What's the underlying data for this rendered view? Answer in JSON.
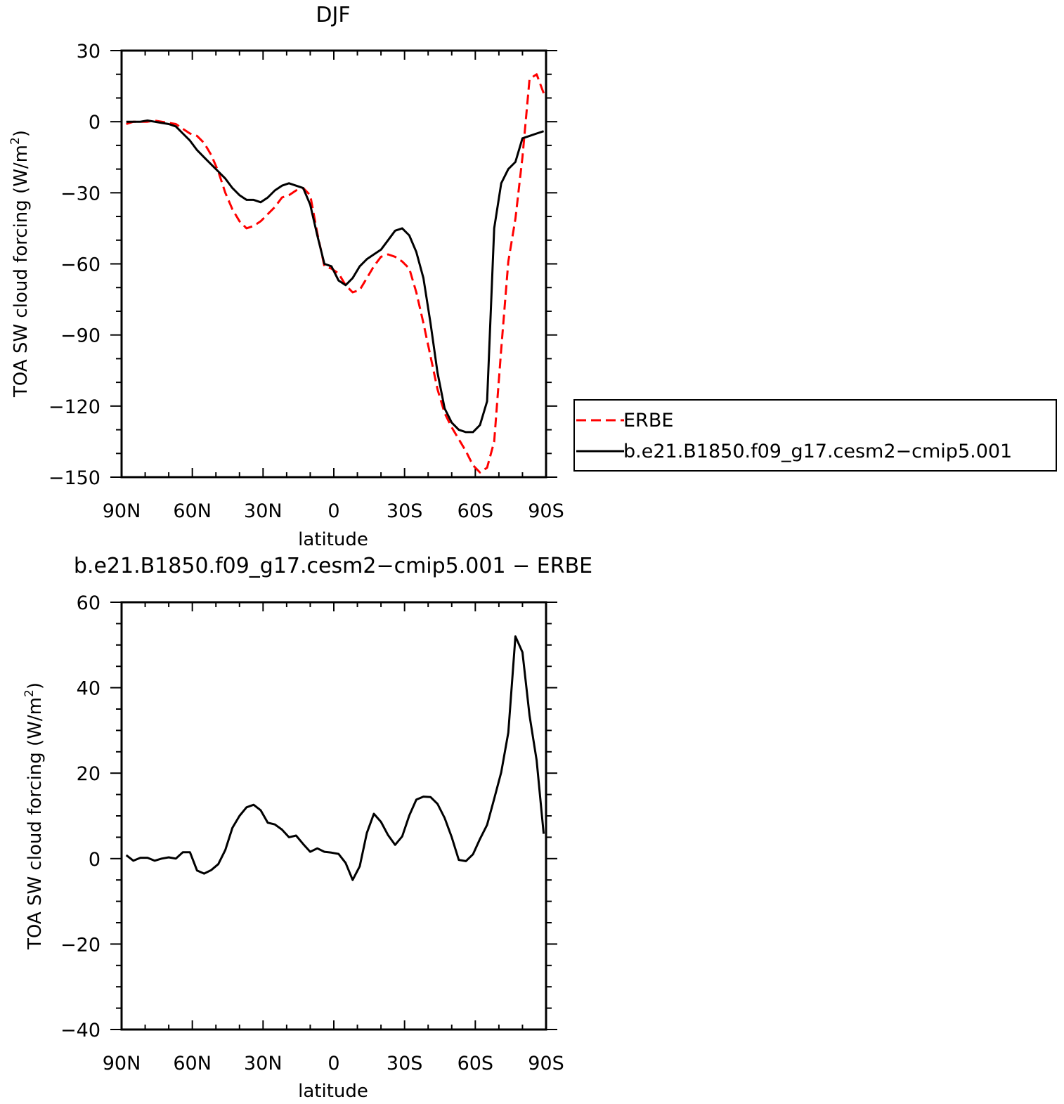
{
  "chart_data": [
    {
      "type": "line",
      "title": "DJF",
      "xlabel": "latitude",
      "ylabel": "TOA SW cloud forcing (W/m²)",
      "ylabel_parts": {
        "main": "TOA SW cloud forcing (W/m",
        "sup": "2",
        "end": ")"
      },
      "xlim": [
        90,
        -90
      ],
      "ylim": [
        -150,
        30
      ],
      "xticks": [
        90,
        60,
        30,
        0,
        -30,
        -60,
        -90
      ],
      "xtick_labels": [
        "90N",
        "60N",
        "30N",
        "0",
        "30S",
        "60S",
        "90S"
      ],
      "yticks": [
        30,
        0,
        -30,
        -60,
        -90,
        -120,
        -150
      ],
      "ytick_labels": [
        "30",
        "0",
        "−30",
        "−60",
        "−90",
        "−120",
        "−150"
      ],
      "legend": {
        "placement": "right",
        "entries": [
          "ERBE",
          "b.e21.B1850.f09_g17.cesm2−cmip5.001"
        ]
      },
      "series": [
        {
          "name": "ERBE",
          "color": "#ff0000",
          "dash": true,
          "x": [
            88,
            85,
            82,
            79,
            76,
            73,
            70,
            67,
            64,
            61,
            58,
            55,
            52,
            49,
            46,
            43,
            40,
            37,
            34,
            31,
            28,
            25,
            22,
            19,
            16,
            13,
            10,
            7,
            4,
            1,
            -2,
            -5,
            -8,
            -11,
            -14,
            -17,
            -20,
            -23,
            -26,
            -29,
            -32,
            -35,
            -38,
            -41,
            -44,
            -47,
            -50,
            -53,
            -56,
            -59,
            -62,
            -65,
            -68,
            -71,
            -74,
            -77,
            -80,
            -83,
            -86,
            -89
          ],
          "y": [
            -1,
            0,
            0,
            0,
            0.5,
            0,
            -0.5,
            -1,
            -3,
            -5,
            -6,
            -9,
            -14,
            -21,
            -30,
            -37,
            -42,
            -45,
            -44,
            -42,
            -39,
            -36,
            -32,
            -31,
            -29,
            -28,
            -31,
            -47,
            -61,
            -62,
            -64,
            -69,
            -72,
            -71,
            -66,
            -61,
            -57,
            -56,
            -57,
            -59,
            -62,
            -72,
            -85,
            -99,
            -113,
            -123,
            -129,
            -134,
            -139,
            -145,
            -148,
            -146,
            -135,
            -96,
            -59,
            -41,
            -15,
            18,
            20,
            12
          ]
        },
        {
          "name": "b.e21.B1850.f09_g17.cesm2−cmip5.001",
          "color": "#000000",
          "dash": false,
          "x": [
            88,
            85,
            82,
            79,
            76,
            73,
            70,
            67,
            64,
            61,
            58,
            55,
            52,
            49,
            46,
            43,
            40,
            37,
            34,
            31,
            28,
            25,
            22,
            19,
            16,
            13,
            10,
            7,
            4,
            1,
            -2,
            -5,
            -8,
            -11,
            -14,
            -17,
            -20,
            -23,
            -26,
            -29,
            -32,
            -35,
            -38,
            -41,
            -44,
            -47,
            -50,
            -53,
            -56,
            -59,
            -62,
            -65,
            -68,
            -71,
            -74,
            -77,
            -80,
            -83,
            -86,
            -89
          ],
          "y": [
            0,
            0,
            0,
            0.5,
            0,
            -0.5,
            -1,
            -2,
            -5,
            -8,
            -12,
            -15,
            -18,
            -21,
            -24,
            -28,
            -31,
            -33,
            -33,
            -34,
            -32,
            -29,
            -27,
            -26,
            -27,
            -28,
            -35,
            -48,
            -60,
            -61,
            -67,
            -69,
            -66,
            -61,
            -58,
            -56,
            -54,
            -50,
            -46,
            -45,
            -48,
            -55,
            -66,
            -85,
            -106,
            -121,
            -127,
            -130,
            -131,
            -131,
            -128,
            -118,
            -45,
            -26,
            -20,
            -17,
            -7,
            -6,
            -5,
            -4
          ]
        }
      ]
    },
    {
      "type": "line",
      "title": "b.e21.B1850.f09_g17.cesm2−cmip5.001 − ERBE",
      "xlabel": "latitude",
      "ylabel": "TOA SW cloud forcing (W/m²)",
      "ylabel_parts": {
        "main": "TOA SW cloud forcing (W/m",
        "sup": "2",
        "end": ")"
      },
      "xlim": [
        90,
        -90
      ],
      "ylim": [
        -40,
        60
      ],
      "xticks": [
        90,
        60,
        30,
        0,
        -30,
        -60,
        -90
      ],
      "xtick_labels": [
        "90N",
        "60N",
        "30N",
        "0",
        "30S",
        "60S",
        "90S"
      ],
      "yticks": [
        60,
        40,
        20,
        0,
        -20,
        -40
      ],
      "ytick_labels": [
        "60",
        "40",
        "20",
        "0",
        "−20",
        "−40"
      ],
      "series": [
        {
          "color": "#000000",
          "dash": false,
          "x": [
            88,
            85,
            82,
            79,
            76,
            73,
            70,
            67,
            64,
            61,
            58,
            55,
            52,
            49,
            46,
            43,
            40,
            37,
            34,
            31,
            28,
            25,
            22,
            19,
            16,
            13,
            10,
            7,
            4,
            1,
            -2,
            -5,
            -8,
            -11,
            -14,
            -17,
            -20,
            -23,
            -26,
            -29,
            -32,
            -35,
            -38,
            -41,
            -44,
            -47,
            -50,
            -53,
            -56,
            -59,
            -62,
            -65,
            -68,
            -71,
            -74,
            -77,
            -80,
            -83,
            -86,
            -89
          ],
          "y": [
            0.8,
            -0.5,
            0.2,
            0.2,
            -0.5,
            0,
            0.3,
            0,
            1.5,
            1.5,
            -2.8,
            -3.5,
            -2.7,
            -1.3,
            2,
            7.2,
            10,
            12,
            12.6,
            11.3,
            8.4,
            8,
            6.8,
            5,
            5.4,
            3.4,
            1.6,
            2.4,
            1.6,
            1.4,
            1.1,
            -1,
            -5,
            -1.8,
            6,
            10.5,
            8.6,
            5.5,
            3.2,
            5.2,
            10.1,
            13.8,
            14.5,
            14.4,
            12.8,
            9.5,
            5,
            -0.3,
            -0.6,
            1,
            4.6,
            7.9,
            14,
            20.2,
            29.5,
            52,
            48.3,
            33.5,
            23,
            5.8
          ]
        }
      ]
    }
  ]
}
